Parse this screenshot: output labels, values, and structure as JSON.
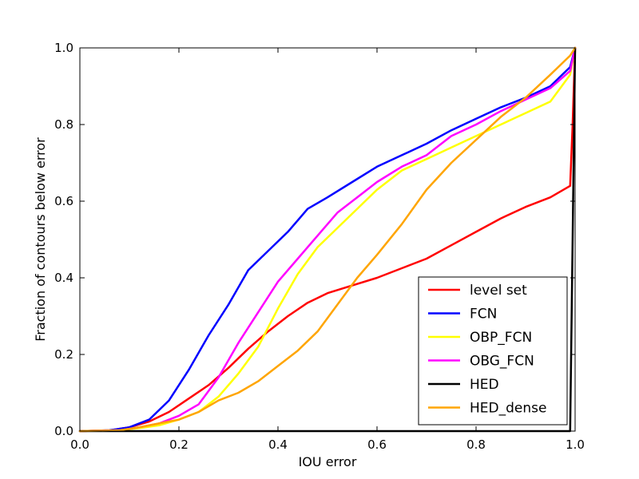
{
  "chart_data": {
    "type": "line",
    "title": "",
    "xlabel": "IOU error",
    "ylabel": "Fraction of contours below error",
    "xlim": [
      0.0,
      1.0
    ],
    "ylim": [
      0.0,
      1.0
    ],
    "xticks": [
      "0.0",
      "0.2",
      "0.4",
      "0.6",
      "0.8",
      "1.0"
    ],
    "yticks": [
      "0.0",
      "0.2",
      "0.4",
      "0.6",
      "0.8",
      "1.0"
    ],
    "grid": false,
    "legend_position": "lower-right",
    "series": [
      {
        "name": "level set",
        "color": "#ff0000",
        "points": [
          [
            0.0,
            0.0
          ],
          [
            0.06,
            0.002
          ],
          [
            0.1,
            0.01
          ],
          [
            0.14,
            0.025
          ],
          [
            0.18,
            0.05
          ],
          [
            0.22,
            0.085
          ],
          [
            0.26,
            0.12
          ],
          [
            0.3,
            0.165
          ],
          [
            0.34,
            0.215
          ],
          [
            0.38,
            0.26
          ],
          [
            0.42,
            0.3
          ],
          [
            0.46,
            0.335
          ],
          [
            0.5,
            0.36
          ],
          [
            0.55,
            0.38
          ],
          [
            0.6,
            0.4
          ],
          [
            0.65,
            0.425
          ],
          [
            0.7,
            0.45
          ],
          [
            0.75,
            0.485
          ],
          [
            0.8,
            0.52
          ],
          [
            0.85,
            0.555
          ],
          [
            0.9,
            0.585
          ],
          [
            0.95,
            0.61
          ],
          [
            0.99,
            0.64
          ],
          [
            0.995,
            0.8
          ],
          [
            1.0,
            1.0
          ]
        ]
      },
      {
        "name": "FCN",
        "color": "#0000ff",
        "points": [
          [
            0.0,
            0.0
          ],
          [
            0.06,
            0.002
          ],
          [
            0.1,
            0.01
          ],
          [
            0.14,
            0.03
          ],
          [
            0.18,
            0.08
          ],
          [
            0.22,
            0.16
          ],
          [
            0.26,
            0.25
          ],
          [
            0.3,
            0.33
          ],
          [
            0.34,
            0.42
          ],
          [
            0.38,
            0.47
          ],
          [
            0.42,
            0.52
          ],
          [
            0.46,
            0.58
          ],
          [
            0.5,
            0.61
          ],
          [
            0.55,
            0.65
          ],
          [
            0.6,
            0.69
          ],
          [
            0.65,
            0.72
          ],
          [
            0.7,
            0.75
          ],
          [
            0.75,
            0.785
          ],
          [
            0.8,
            0.815
          ],
          [
            0.85,
            0.845
          ],
          [
            0.9,
            0.87
          ],
          [
            0.95,
            0.9
          ],
          [
            0.99,
            0.95
          ],
          [
            1.0,
            1.0
          ]
        ]
      },
      {
        "name": "OBP_FCN",
        "color": "#ffff00",
        "points": [
          [
            0.0,
            0.0
          ],
          [
            0.08,
            0.002
          ],
          [
            0.12,
            0.008
          ],
          [
            0.16,
            0.015
          ],
          [
            0.2,
            0.03
          ],
          [
            0.24,
            0.05
          ],
          [
            0.28,
            0.09
          ],
          [
            0.32,
            0.15
          ],
          [
            0.36,
            0.22
          ],
          [
            0.4,
            0.32
          ],
          [
            0.44,
            0.41
          ],
          [
            0.48,
            0.48
          ],
          [
            0.52,
            0.53
          ],
          [
            0.56,
            0.58
          ],
          [
            0.6,
            0.63
          ],
          [
            0.65,
            0.68
          ],
          [
            0.7,
            0.71
          ],
          [
            0.75,
            0.74
          ],
          [
            0.8,
            0.77
          ],
          [
            0.85,
            0.8
          ],
          [
            0.9,
            0.83
          ],
          [
            0.95,
            0.86
          ],
          [
            0.99,
            0.93
          ],
          [
            1.0,
            1.0
          ]
        ]
      },
      {
        "name": "OBG_FCN",
        "color": "#ff00ff",
        "points": [
          [
            0.0,
            0.0
          ],
          [
            0.08,
            0.002
          ],
          [
            0.12,
            0.01
          ],
          [
            0.16,
            0.02
          ],
          [
            0.2,
            0.04
          ],
          [
            0.24,
            0.07
          ],
          [
            0.28,
            0.14
          ],
          [
            0.32,
            0.23
          ],
          [
            0.36,
            0.31
          ],
          [
            0.4,
            0.39
          ],
          [
            0.44,
            0.45
          ],
          [
            0.48,
            0.51
          ],
          [
            0.52,
            0.57
          ],
          [
            0.56,
            0.61
          ],
          [
            0.6,
            0.65
          ],
          [
            0.65,
            0.69
          ],
          [
            0.7,
            0.72
          ],
          [
            0.75,
            0.77
          ],
          [
            0.8,
            0.8
          ],
          [
            0.85,
            0.835
          ],
          [
            0.9,
            0.865
          ],
          [
            0.95,
            0.895
          ],
          [
            0.99,
            0.94
          ],
          [
            1.0,
            1.0
          ]
        ]
      },
      {
        "name": "HED",
        "color": "#000000",
        "points": [
          [
            0.0,
            0.0
          ],
          [
            0.99,
            0.0
          ],
          [
            0.995,
            0.5
          ],
          [
            1.0,
            1.0
          ]
        ]
      },
      {
        "name": "HED_dense",
        "color": "#ffa500",
        "points": [
          [
            0.0,
            0.0
          ],
          [
            0.08,
            0.002
          ],
          [
            0.12,
            0.01
          ],
          [
            0.16,
            0.02
          ],
          [
            0.2,
            0.03
          ],
          [
            0.24,
            0.05
          ],
          [
            0.28,
            0.08
          ],
          [
            0.32,
            0.1
          ],
          [
            0.36,
            0.13
          ],
          [
            0.4,
            0.17
          ],
          [
            0.44,
            0.21
          ],
          [
            0.48,
            0.26
          ],
          [
            0.52,
            0.33
          ],
          [
            0.56,
            0.4
          ],
          [
            0.6,
            0.46
          ],
          [
            0.65,
            0.54
          ],
          [
            0.7,
            0.63
          ],
          [
            0.75,
            0.7
          ],
          [
            0.8,
            0.76
          ],
          [
            0.85,
            0.82
          ],
          [
            0.9,
            0.87
          ],
          [
            0.95,
            0.93
          ],
          [
            0.99,
            0.98
          ],
          [
            1.0,
            1.0
          ]
        ]
      }
    ]
  }
}
